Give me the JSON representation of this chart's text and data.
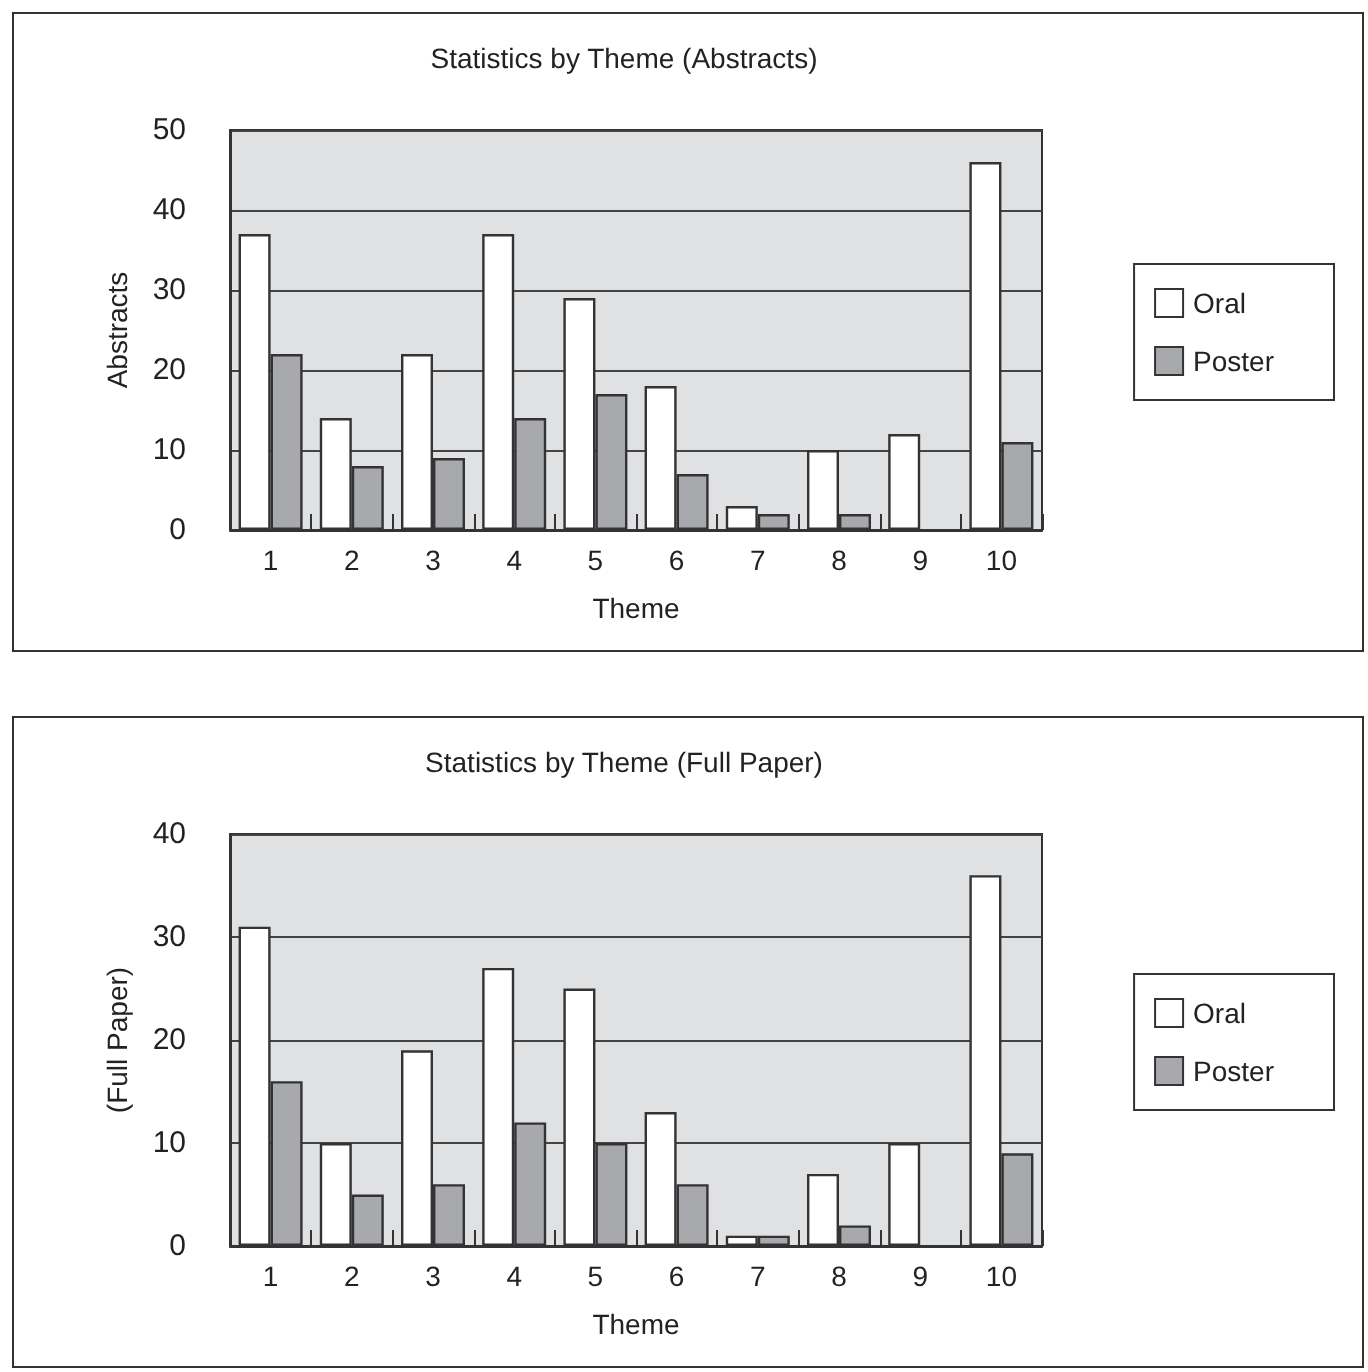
{
  "chart_data": [
    {
      "type": "bar",
      "title": "Statistics by Theme (Abstracts)",
      "xlabel": "Theme",
      "ylabel": "Abstracts",
      "categories": [
        "1",
        "2",
        "3",
        "4",
        "5",
        "6",
        "7",
        "8",
        "9",
        "10"
      ],
      "series": [
        {
          "name": "Oral",
          "color": "#ffffff",
          "values": [
            37,
            14,
            22,
            37,
            29,
            18,
            3,
            10,
            12,
            46
          ]
        },
        {
          "name": "Poster",
          "color": "#a8a9ad",
          "values": [
            22,
            8,
            9,
            14,
            17,
            7,
            2,
            2,
            null,
            11
          ]
        }
      ],
      "ylim": [
        0,
        50
      ],
      "yticks": [
        0,
        10,
        20,
        30,
        40,
        50
      ],
      "grid": "y",
      "legend": "right"
    },
    {
      "type": "bar",
      "title": "Statistics by Theme (Full Paper)",
      "xlabel": "Theme",
      "ylabel": "(Full Paper)",
      "categories": [
        "1",
        "2",
        "3",
        "4",
        "5",
        "6",
        "7",
        "8",
        "9",
        "10"
      ],
      "series": [
        {
          "name": "Oral",
          "color": "#ffffff",
          "values": [
            31,
            10,
            19,
            27,
            25,
            13,
            1,
            7,
            10,
            36
          ]
        },
        {
          "name": "Poster",
          "color": "#a8a9ad",
          "values": [
            16,
            5,
            6,
            12,
            10,
            6,
            1,
            2,
            null,
            9
          ]
        }
      ],
      "ylim": [
        0,
        40
      ],
      "yticks": [
        0,
        10,
        20,
        30,
        40
      ],
      "grid": "y",
      "legend": "right"
    }
  ]
}
